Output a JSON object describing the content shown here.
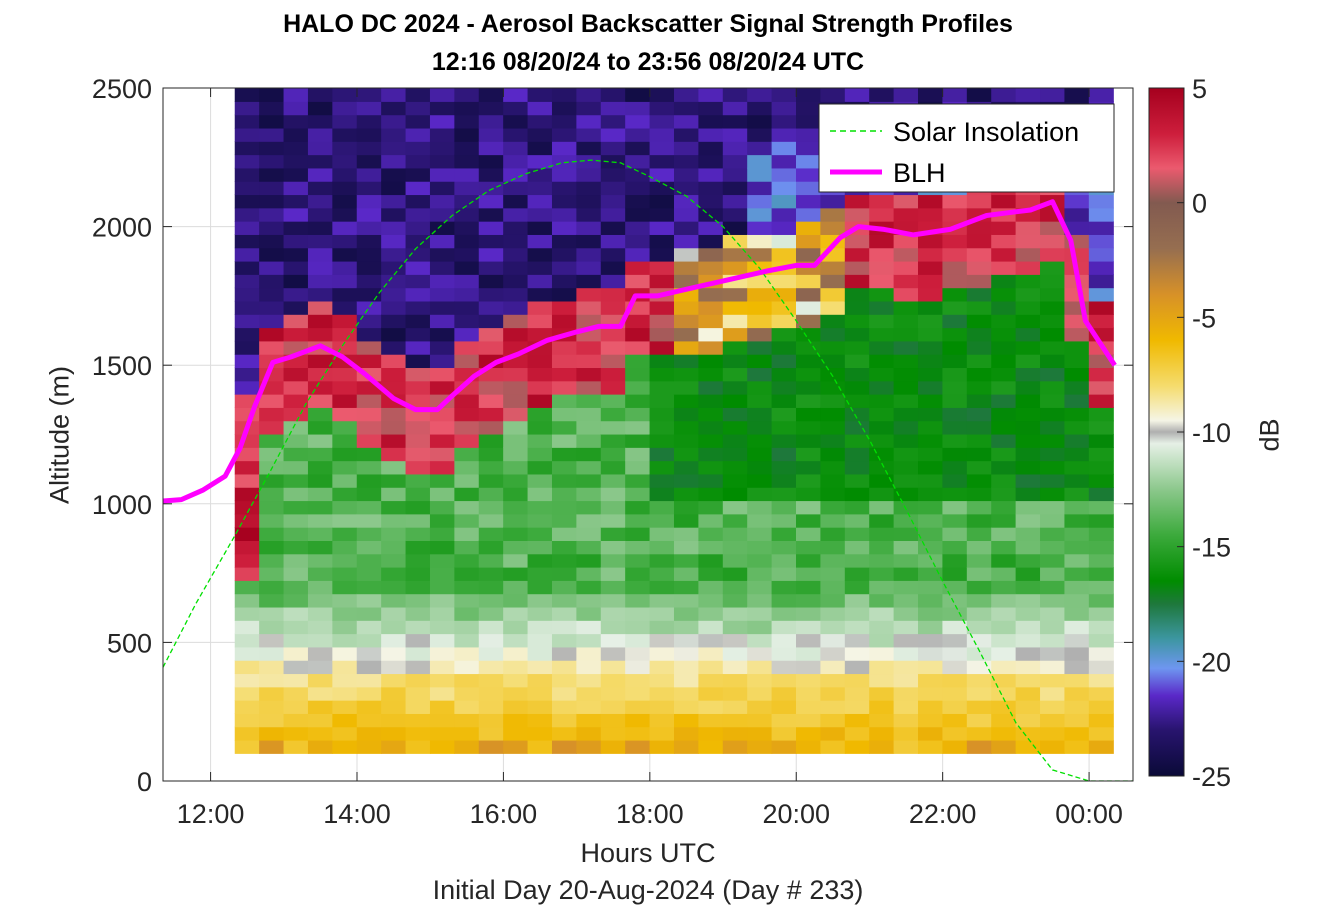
{
  "chart_data": {
    "type": "heatmap",
    "title": "HALO DC 2024 - Aerosol Backscatter Signal Strength Profiles",
    "subtitle": "12:16 08/20/24 to 23:56 08/20/24  UTC",
    "xlabel": "Hours UTC",
    "ylabel": "Altitude (m)",
    "footnote": "Initial Day 20-Aug-2024 (Day # 233)",
    "colorbar_label": "dB",
    "xlim": [
      11.35,
      24.6
    ],
    "ylim": [
      0,
      2500
    ],
    "clim": [
      -25,
      5
    ],
    "grid": true,
    "legend_position": "top-right",
    "x_ticks": [
      12,
      14,
      16,
      18,
      20,
      22,
      24
    ],
    "x_tick_labels": [
      "12:00",
      "14:00",
      "16:00",
      "18:00",
      "20:00",
      "22:00",
      "00:00"
    ],
    "y_ticks": [
      0,
      500,
      1000,
      1500,
      2000,
      2500
    ],
    "y_tick_labels": [
      "0",
      "500",
      "1000",
      "1500",
      "2000",
      "2500"
    ],
    "colorbar_ticks": [
      5,
      0,
      -5,
      -10,
      -15,
      -20,
      -25
    ],
    "colorbar_tick_labels": [
      "5",
      "0",
      "-5",
      "-10",
      "-15",
      "-20",
      "-25"
    ],
    "heatmap": {
      "x_start": 12.33,
      "x_end": 24.33,
      "x_count": 36,
      "y_start": 100,
      "y_end": 2500,
      "y_count": 50,
      "fill_note": "estimated signal strength in dB; values recreated approximately from the image"
    },
    "series": [
      {
        "name": "Solar Insolation",
        "style": "dashed",
        "color": "#00e000",
        "x": [
          11.35,
          11.8,
          12.3,
          12.8,
          13.3,
          13.8,
          14.3,
          14.8,
          15.3,
          15.8,
          16.3,
          16.8,
          17.2,
          17.6,
          18.0,
          18.5,
          19.0,
          19.5,
          20.0,
          20.5,
          21.0,
          21.5,
          22.0,
          22.5,
          23.0,
          23.5,
          24.0,
          24.1,
          24.6
        ],
        "y": [
          410,
          640,
          870,
          1110,
          1360,
          1570,
          1760,
          1920,
          2040,
          2130,
          2190,
          2230,
          2240,
          2230,
          2180,
          2110,
          2000,
          1850,
          1660,
          1460,
          1230,
          980,
          720,
          470,
          210,
          40,
          0,
          0,
          0
        ]
      },
      {
        "name": "BLH",
        "style": "solid",
        "color": "#ff00ff",
        "x": [
          11.35,
          11.6,
          11.9,
          12.2,
          12.4,
          12.6,
          12.85,
          13.1,
          13.5,
          13.8,
          14.1,
          14.5,
          14.8,
          15.1,
          15.3,
          15.6,
          15.9,
          16.2,
          16.6,
          17.0,
          17.3,
          17.6,
          17.8,
          18.1,
          18.6,
          19.1,
          19.6,
          20.0,
          20.25,
          20.6,
          20.85,
          21.2,
          21.6,
          22.1,
          22.6,
          22.9,
          23.2,
          23.5,
          23.75,
          23.95,
          24.35
        ],
        "y": [
          1010,
          1015,
          1050,
          1100,
          1200,
          1350,
          1510,
          1530,
          1570,
          1530,
          1470,
          1380,
          1340,
          1340,
          1390,
          1460,
          1510,
          1540,
          1590,
          1620,
          1640,
          1640,
          1750,
          1750,
          1780,
          1810,
          1840,
          1860,
          1860,
          1960,
          2000,
          1990,
          1970,
          1990,
          2040,
          2050,
          2060,
          2090,
          1950,
          1660,
          1500
        ]
      }
    ]
  }
}
